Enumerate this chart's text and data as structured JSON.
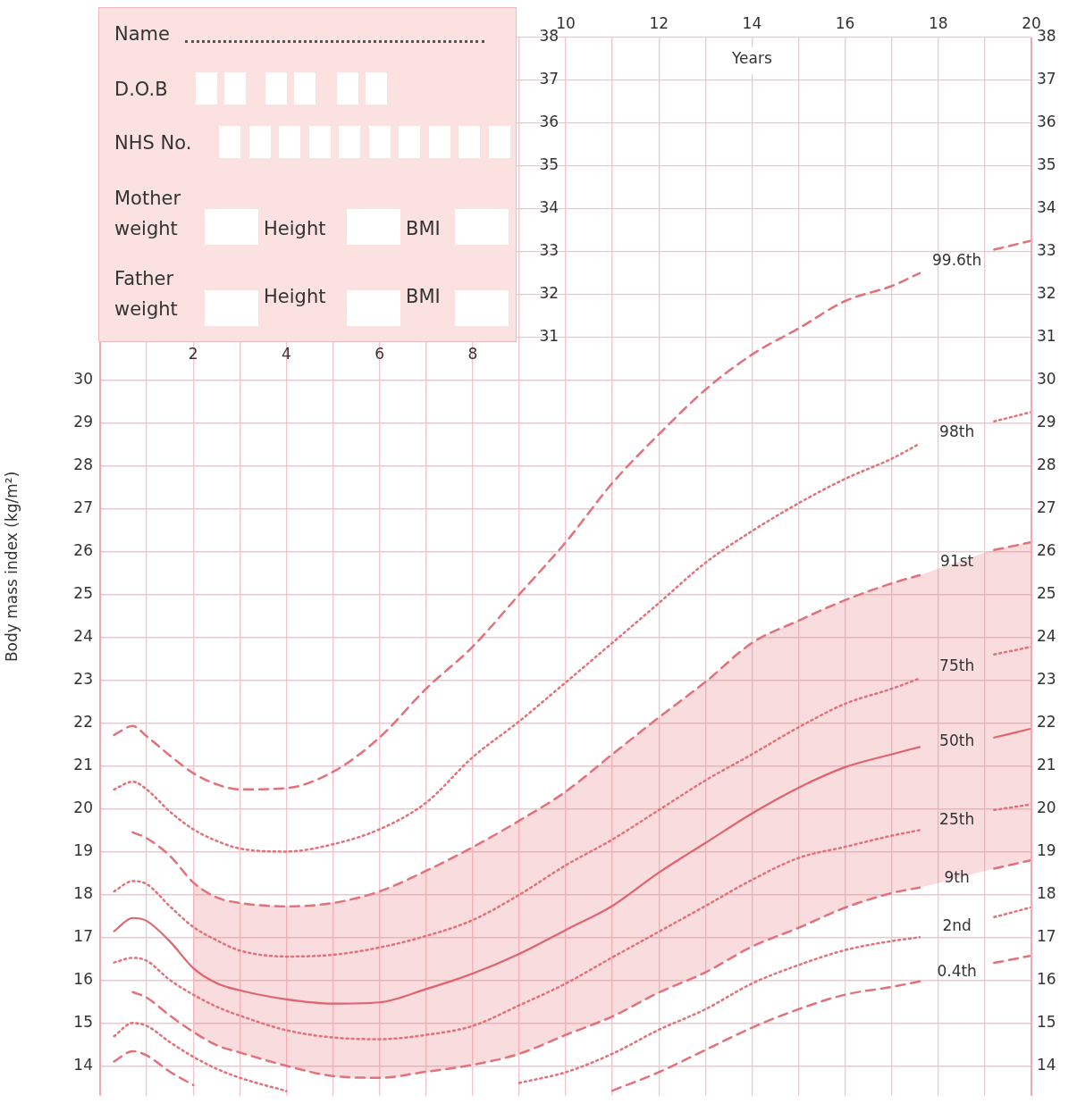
{
  "chart_data": {
    "type": "line",
    "xlabel": "Years",
    "ylabel": "Body mass index (kg/m²)",
    "annotations": [
      "Name",
      "D.O.B",
      "NHS No.",
      "Mother weight",
      "Height",
      "BMI",
      "Father weight",
      "Height",
      "BMI"
    ],
    "x": [
      0.3,
      0.7,
      1,
      1.5,
      2,
      2.5,
      3,
      4,
      5,
      6,
      7,
      8,
      9,
      10,
      11,
      12,
      13,
      14,
      15,
      16,
      17,
      17.6,
      18.4,
      19.2,
      20
    ],
    "series": [
      {
        "name": "99.6th",
        "color": "#e3717b",
        "line_style": "dashed",
        "values": [
          21.72,
          21.93,
          21.69,
          21.24,
          20.83,
          20.57,
          20.45,
          20.48,
          20.86,
          21.66,
          22.8,
          23.78,
          25.0,
          26.22,
          27.6,
          28.74,
          29.78,
          30.6,
          31.21,
          31.85,
          32.2,
          32.5,
          null,
          33.05,
          33.26
        ]
      },
      {
        "name": "98th",
        "color": "#e3717b",
        "line_style": "dotted",
        "values": [
          20.45,
          20.63,
          20.45,
          19.93,
          19.52,
          19.25,
          19.07,
          19.0,
          19.17,
          19.52,
          20.14,
          21.2,
          22.04,
          22.95,
          23.87,
          24.8,
          25.74,
          26.48,
          27.13,
          27.7,
          28.17,
          28.52,
          null,
          29.04,
          29.26
        ]
      },
      {
        "name": "91st",
        "color": "#e3717b",
        "line_style": "dashed",
        "values": [
          null,
          19.45,
          19.31,
          18.9,
          18.28,
          17.93,
          17.8,
          17.72,
          17.8,
          18.07,
          18.55,
          19.1,
          19.72,
          20.4,
          21.27,
          22.13,
          22.96,
          23.87,
          24.39,
          24.87,
          25.26,
          25.45,
          null,
          26.04,
          26.22
        ]
      },
      {
        "name": "75th",
        "color": "#e3717b",
        "line_style": "dotted",
        "values": [
          18.07,
          18.31,
          18.24,
          17.72,
          17.24,
          16.93,
          16.69,
          16.55,
          16.59,
          16.76,
          17.03,
          17.4,
          17.99,
          18.68,
          19.28,
          19.97,
          20.66,
          21.27,
          21.9,
          22.45,
          22.8,
          23.04,
          null,
          23.6,
          23.78
        ]
      },
      {
        "name": "50th",
        "color": "#e0636f",
        "line_style": "solid",
        "values": [
          17.14,
          17.45,
          17.38,
          16.9,
          16.28,
          15.93,
          15.76,
          15.55,
          15.45,
          15.48,
          15.79,
          16.15,
          16.61,
          17.17,
          17.73,
          18.51,
          19.2,
          19.89,
          20.49,
          20.97,
          21.27,
          21.44,
          null,
          21.66,
          21.87
        ],
        "upper": [
          null,
          null,
          null,
          null,
          18.28,
          17.93,
          17.8,
          17.72,
          17.8,
          18.07,
          18.55,
          19.1,
          19.72,
          20.4,
          21.27,
          22.13,
          22.96,
          23.87,
          24.39,
          24.87,
          25.26,
          25.45,
          25.75,
          26.04,
          26.22
        ],
        "lower": [
          null,
          null,
          null,
          null,
          14.79,
          14.48,
          14.31,
          14.0,
          13.76,
          13.72,
          13.86,
          14.02,
          14.28,
          14.72,
          15.15,
          15.71,
          16.18,
          16.78,
          17.22,
          17.69,
          18.03,
          18.16,
          18.38,
          18.6,
          18.8
        ]
      },
      {
        "name": "25th",
        "color": "#e3717b",
        "line_style": "dotted",
        "values": [
          16.41,
          16.52,
          16.45,
          16.0,
          15.66,
          15.38,
          15.17,
          14.83,
          14.66,
          14.62,
          14.72,
          14.93,
          15.41,
          15.92,
          16.53,
          17.13,
          17.73,
          18.34,
          18.85,
          19.11,
          19.37,
          19.5,
          null,
          19.97,
          20.1
        ]
      },
      {
        "name": "9th",
        "color": "#e3717b",
        "line_style": "dashed",
        "values": [
          null,
          15.72,
          15.59,
          15.17,
          14.79,
          14.48,
          14.31,
          14.0,
          13.76,
          13.72,
          13.86,
          14.02,
          14.28,
          14.72,
          15.15,
          15.71,
          16.18,
          16.78,
          17.22,
          17.69,
          18.03,
          18.16,
          null,
          18.6,
          18.8
        ]
      },
      {
        "name": "2nd",
        "color": "#e3717b",
        "line_style": "dotted",
        "values": [
          14.69,
          15.0,
          14.93,
          14.55,
          14.21,
          13.93,
          13.72,
          13.41,
          null,
          null,
          null,
          null,
          13.6,
          13.85,
          14.28,
          14.84,
          15.32,
          15.92,
          16.35,
          16.7,
          16.91,
          17.0,
          null,
          17.47,
          17.7
        ]
      },
      {
        "name": "0.4th",
        "color": "#e3717b",
        "line_style": "dashed",
        "values": [
          14.1,
          14.34,
          14.24,
          13.86,
          13.55,
          null,
          null,
          null,
          null,
          null,
          null,
          null,
          null,
          null,
          13.42,
          13.85,
          14.37,
          14.89,
          15.32,
          15.66,
          15.84,
          15.97,
          null,
          16.4,
          16.57
        ]
      }
    ],
    "xlim": [
      0,
      20
    ],
    "xticks": [
      {
        "value": 0,
        "label": null
      },
      {
        "value": 1,
        "label": null
      },
      2,
      {
        "value": 3,
        "label": null
      },
      4,
      {
        "value": 5,
        "label": null
      },
      6,
      {
        "value": 7,
        "label": null
      },
      8,
      {
        "value": 9,
        "label": null
      }
    ],
    "x2lim": [
      0,
      20
    ],
    "x2ticks": [
      10,
      {
        "value": 11,
        "label": null
      },
      12,
      {
        "value": 13,
        "label": null
      },
      14,
      {
        "value": 15,
        "label": null
      },
      16,
      {
        "value": 17,
        "label": null
      },
      18,
      {
        "value": 19,
        "label": null
      },
      20
    ],
    "ylim": [
      13.3,
      38
    ],
    "yticks": [
      14,
      15,
      16,
      17,
      18,
      19,
      20,
      21,
      22,
      23,
      24,
      25,
      26,
      27,
      28,
      29,
      30
    ],
    "y2lim": [
      13.3,
      38
    ],
    "y2ticks": [
      14,
      15,
      16,
      17,
      18,
      19,
      20,
      21,
      22,
      23,
      24,
      25,
      26,
      27,
      28,
      29,
      30,
      31,
      32,
      33,
      34,
      35,
      36,
      37,
      38
    ],
    "y3lim": [
      13.3,
      38
    ],
    "y3ticks": [
      31,
      32,
      33,
      34,
      35,
      36,
      37,
      38
    ],
    "grid": true,
    "marker": "none"
  }
}
